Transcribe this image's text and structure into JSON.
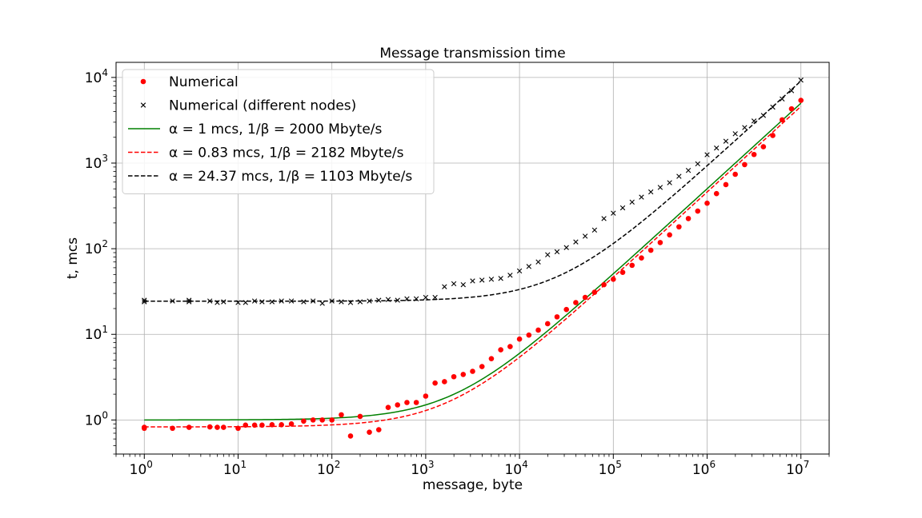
{
  "chart_data": {
    "type": "scatter",
    "title": "Message transmission time",
    "xlabel": "message, byte",
    "ylabel": "t, mcs",
    "xscale": "log",
    "yscale": "log",
    "xlim": [
      0.5,
      20000000
    ],
    "ylim": [
      0.4,
      15000
    ],
    "grid": true,
    "legend_position": "top-left",
    "x_ticks": [
      {
        "base": "10",
        "exp": "0",
        "value": 1
      },
      {
        "base": "10",
        "exp": "1",
        "value": 10
      },
      {
        "base": "10",
        "exp": "2",
        "value": 100
      },
      {
        "base": "10",
        "exp": "3",
        "value": 1000
      },
      {
        "base": "10",
        "exp": "4",
        "value": 10000
      },
      {
        "base": "10",
        "exp": "5",
        "value": 100000
      },
      {
        "base": "10",
        "exp": "6",
        "value": 1000000
      },
      {
        "base": "10",
        "exp": "7",
        "value": 10000000
      }
    ],
    "y_ticks": [
      {
        "base": "10",
        "exp": "0",
        "value": 1
      },
      {
        "base": "10",
        "exp": "1",
        "value": 10
      },
      {
        "base": "10",
        "exp": "2",
        "value": 100
      },
      {
        "base": "10",
        "exp": "3",
        "value": 1000
      },
      {
        "base": "10",
        "exp": "4",
        "value": 10000
      }
    ],
    "series": [
      {
        "name": "Numerical",
        "kind": "points",
        "marker": "dot",
        "color": "#ff0000",
        "points": [
          [
            1,
            0.8
          ],
          [
            1,
            0.82
          ],
          [
            2,
            0.8
          ],
          [
            3,
            0.82
          ],
          [
            5,
            0.83
          ],
          [
            6,
            0.82
          ],
          [
            7,
            0.82
          ],
          [
            10,
            0.8
          ],
          [
            12,
            0.87
          ],
          [
            15,
            0.87
          ],
          [
            18,
            0.87
          ],
          [
            23,
            0.88
          ],
          [
            29,
            0.88
          ],
          [
            37,
            0.9
          ],
          [
            50,
            0.97
          ],
          [
            63,
            1.0
          ],
          [
            79,
            1.0
          ],
          [
            100,
            1.0
          ],
          [
            126,
            1.15
          ],
          [
            158,
            0.65
          ],
          [
            200,
            1.1
          ],
          [
            251,
            0.72
          ],
          [
            316,
            0.77
          ],
          [
            398,
            1.4
          ],
          [
            501,
            1.5
          ],
          [
            631,
            1.6
          ],
          [
            794,
            1.6
          ],
          [
            1000,
            1.9
          ],
          [
            1259,
            2.7
          ],
          [
            1585,
            2.8
          ],
          [
            1995,
            3.2
          ],
          [
            2512,
            3.4
          ],
          [
            3162,
            3.7
          ],
          [
            3981,
            4.2
          ],
          [
            5012,
            5.2
          ],
          [
            6310,
            6.6
          ],
          [
            7943,
            7.2
          ],
          [
            10000,
            8.8
          ],
          [
            12589,
            9.8
          ],
          [
            15849,
            11.2
          ],
          [
            19953,
            13.3
          ],
          [
            25119,
            16.0
          ],
          [
            31623,
            19.5
          ],
          [
            39811,
            23.5
          ],
          [
            50119,
            27.0
          ],
          [
            63096,
            31.0
          ],
          [
            79433,
            38.0
          ],
          [
            100000,
            44.0
          ],
          [
            125893,
            53.0
          ],
          [
            158489,
            64.0
          ],
          [
            199526,
            78.0
          ],
          [
            251189,
            96.0
          ],
          [
            316228,
            118
          ],
          [
            398107,
            145
          ],
          [
            501187,
            180
          ],
          [
            630957,
            225
          ],
          [
            794328,
            275
          ],
          [
            1000000,
            340
          ],
          [
            1258925,
            440
          ],
          [
            1584893,
            560
          ],
          [
            1995262,
            740
          ],
          [
            2511886,
            960
          ],
          [
            3162278,
            1260
          ],
          [
            3981072,
            1550
          ],
          [
            5011872,
            2100
          ],
          [
            6309573,
            3200
          ],
          [
            7943282,
            4300
          ],
          [
            10000000,
            5400
          ]
        ]
      },
      {
        "name": "Numerical (different nodes)",
        "kind": "points",
        "marker": "x",
        "color": "#000000",
        "points": [
          [
            1,
            24
          ],
          [
            1,
            25
          ],
          [
            2,
            24.5
          ],
          [
            3,
            24
          ],
          [
            3,
            25
          ],
          [
            5,
            24.5
          ],
          [
            6,
            23.5
          ],
          [
            7,
            24
          ],
          [
            10,
            23.5
          ],
          [
            12,
            23.5
          ],
          [
            15,
            24.5
          ],
          [
            18,
            24
          ],
          [
            23,
            24
          ],
          [
            29,
            24.5
          ],
          [
            37,
            24.5
          ],
          [
            50,
            24
          ],
          [
            63,
            24.5
          ],
          [
            79,
            23
          ],
          [
            100,
            24.5
          ],
          [
            126,
            24
          ],
          [
            158,
            23.5
          ],
          [
            200,
            24
          ],
          [
            251,
            24.5
          ],
          [
            316,
            25
          ],
          [
            398,
            25.5
          ],
          [
            501,
            25
          ],
          [
            631,
            26
          ],
          [
            794,
            26
          ],
          [
            1000,
            27
          ],
          [
            1259,
            27
          ],
          [
            1585,
            36
          ],
          [
            1995,
            39
          ],
          [
            2512,
            38
          ],
          [
            3162,
            42
          ],
          [
            3981,
            43
          ],
          [
            5012,
            44
          ],
          [
            6310,
            45
          ],
          [
            7943,
            49
          ],
          [
            10000,
            55
          ],
          [
            12589,
            62
          ],
          [
            15849,
            70
          ],
          [
            19953,
            85
          ],
          [
            25119,
            92
          ],
          [
            31623,
            103
          ],
          [
            39811,
            120
          ],
          [
            50119,
            140
          ],
          [
            63096,
            165
          ],
          [
            79433,
            225
          ],
          [
            100000,
            260
          ],
          [
            125893,
            300
          ],
          [
            158489,
            350
          ],
          [
            199526,
            400
          ],
          [
            251189,
            460
          ],
          [
            316228,
            520
          ],
          [
            398107,
            590
          ],
          [
            501187,
            700
          ],
          [
            630957,
            820
          ],
          [
            794328,
            980
          ],
          [
            1000000,
            1250
          ],
          [
            1258925,
            1500
          ],
          [
            1584893,
            1800
          ],
          [
            1995262,
            2200
          ],
          [
            2511886,
            2600
          ],
          [
            3162278,
            3100
          ],
          [
            3981072,
            3600
          ],
          [
            5011872,
            4500
          ],
          [
            6309573,
            5600
          ],
          [
            7943282,
            7000
          ],
          [
            10000000,
            9300
          ]
        ]
      },
      {
        "name": "α = 1 mcs, 1/β = 2000 Mbyte/s",
        "kind": "model",
        "line_style": "solid",
        "color": "#008000",
        "alpha": 1,
        "inv_beta": 2000
      },
      {
        "name": "α = 0.83 mcs, 1/β = 2182 Mbyte/s",
        "kind": "model",
        "line_style": "dashed",
        "color": "#ff0000",
        "alpha": 0.83,
        "inv_beta": 2182
      },
      {
        "name": "α = 24.37 mcs, 1/β = 1103 Mbyte/s",
        "kind": "model",
        "line_style": "dashed",
        "color": "#000000",
        "alpha": 24.37,
        "inv_beta": 1103
      }
    ]
  }
}
